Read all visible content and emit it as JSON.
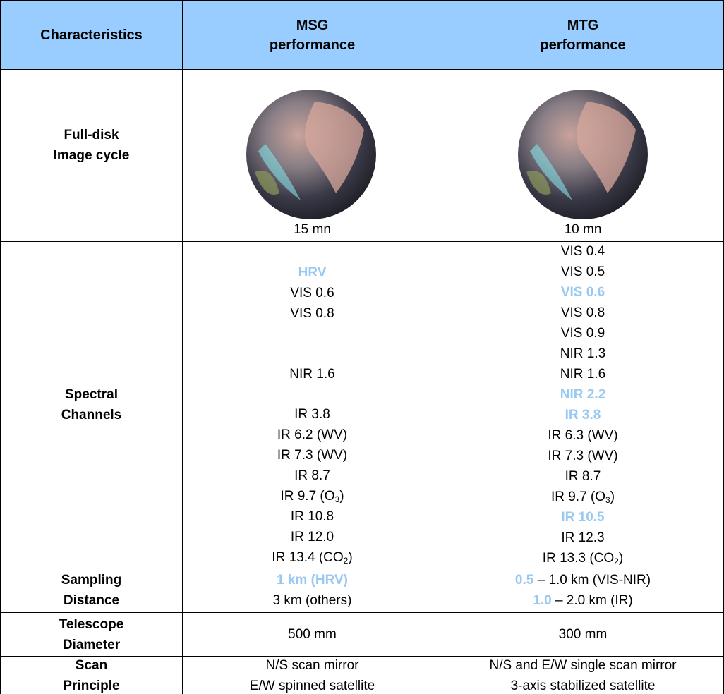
{
  "columns": [
    [
      "Characteristics"
    ],
    [
      "MSG",
      "performance"
    ],
    [
      "MTG",
      "performance"
    ]
  ],
  "header_color": "#99ccff",
  "highlight_color": "#99c9f2",
  "rows": [
    {
      "label": [
        "Full-disk",
        "Image cycle"
      ],
      "msg": [
        [
          {
            "text": "15 mn"
          }
        ]
      ],
      "mtg": [
        [
          {
            "text": "10 mn"
          }
        ]
      ]
    },
    {
      "label": [
        "Spectral",
        "Channels"
      ],
      "msg": [
        null,
        [
          {
            "text": "HRV",
            "highlight": true
          }
        ],
        [
          {
            "text": "VIS 0.6"
          }
        ],
        [
          {
            "text": "VIS 0.8"
          }
        ],
        null,
        null,
        [
          {
            "text": "NIR 1.6"
          }
        ],
        null,
        [
          {
            "text": "IR 3.8"
          }
        ],
        [
          {
            "text": "IR 6.2 (WV)"
          }
        ],
        [
          {
            "text": "IR 7.3 (WV)"
          }
        ],
        [
          {
            "text": "IR 8.7"
          }
        ],
        [
          {
            "text": "IR 9.7 (O"
          },
          {
            "text": "3",
            "sub": true
          },
          {
            "text": ")"
          }
        ],
        [
          {
            "text": "IR 10.8"
          }
        ],
        [
          {
            "text": "IR 12.0"
          }
        ],
        [
          {
            "text": "IR 13.4 (CO"
          },
          {
            "text": "2",
            "sub": true
          },
          {
            "text": ")"
          }
        ]
      ],
      "mtg": [
        [
          {
            "text": "VIS 0.4"
          }
        ],
        [
          {
            "text": "VIS 0.5"
          }
        ],
        [
          {
            "text": "VIS 0.6",
            "highlight": true
          }
        ],
        [
          {
            "text": "VIS 0.8"
          }
        ],
        [
          {
            "text": "VIS 0.9"
          }
        ],
        [
          {
            "text": "NIR 1.3"
          }
        ],
        [
          {
            "text": "NIR 1.6"
          }
        ],
        [
          {
            "text": "NIR 2.2",
            "highlight": true
          }
        ],
        [
          {
            "text": "IR 3.8",
            "highlight": true
          }
        ],
        [
          {
            "text": "IR 6.3 (WV)"
          }
        ],
        [
          {
            "text": "IR 7.3 (WV)"
          }
        ],
        [
          {
            "text": "IR 8.7"
          }
        ],
        [
          {
            "text": "IR 9.7 (O"
          },
          {
            "text": "3",
            "sub": true
          },
          {
            "text": ")"
          }
        ],
        [
          {
            "text": "IR 10.5",
            "highlight": true
          }
        ],
        [
          {
            "text": "IR 12.3"
          }
        ],
        [
          {
            "text": "IR 13.3 (CO"
          },
          {
            "text": "2",
            "sub": true
          },
          {
            "text": ")"
          }
        ]
      ]
    },
    {
      "label": [
        "Sampling",
        "Distance"
      ],
      "msg": [
        [
          {
            "text": "1 km (HRV)",
            "highlight": true
          }
        ],
        [
          {
            "text": "3 km (others)"
          }
        ]
      ],
      "mtg": [
        [
          {
            "text": "0.5",
            "highlight": true
          },
          {
            "text": " – 1.0 km (VIS-NIR)"
          }
        ],
        [
          {
            "text": "1.0",
            "highlight": true
          },
          {
            "text": " – 2.0 km (IR)"
          }
        ]
      ]
    },
    {
      "label": [
        "Telescope",
        "Diameter"
      ],
      "msg": [
        [
          {
            "text": "500 mm"
          }
        ]
      ],
      "mtg": [
        [
          {
            "text": "300 mm"
          }
        ]
      ]
    },
    {
      "label": [
        "Scan",
        "Principle"
      ],
      "msg": [
        [
          {
            "text": "N/S scan mirror"
          }
        ],
        [
          {
            "text": "E/W spinned satellite"
          }
        ]
      ],
      "mtg": [
        [
          {
            "text": "N/S and E/W single scan mirror"
          }
        ],
        [
          {
            "text": "3-axis stabilized satellite"
          }
        ]
      ]
    }
  ]
}
